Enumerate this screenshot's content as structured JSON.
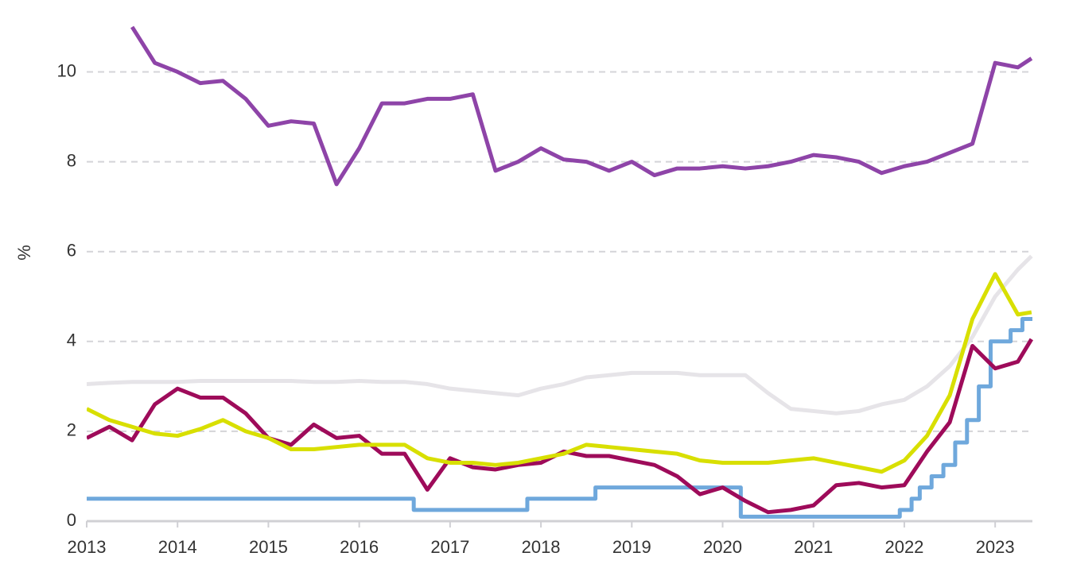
{
  "chart_data": {
    "type": "line",
    "y_label": "%",
    "xlim": [
      2013,
      2023.41
    ],
    "xticks": [
      2013,
      2014,
      2015,
      2016,
      2017,
      2018,
      2019,
      2020,
      2021,
      2022,
      2023
    ],
    "ylim": [
      0,
      11.6
    ],
    "yticks": [
      0,
      2,
      4,
      6,
      8,
      10
    ],
    "grid": true,
    "x": [
      2013,
      2013.25,
      2013.5,
      2013.75,
      2014,
      2014.25,
      2014.5,
      2014.75,
      2015,
      2015.25,
      2015.5,
      2015.75,
      2016,
      2016.25,
      2016.5,
      2016.75,
      2017,
      2017.25,
      2017.5,
      2017.75,
      2018,
      2018.25,
      2018.5,
      2018.75,
      2019,
      2019.25,
      2019.5,
      2019.75,
      2020,
      2020.25,
      2020.5,
      2020.75,
      2021,
      2021.25,
      2021.5,
      2021.75,
      2022,
      2022.25,
      2022.5,
      2022.75,
      2023,
      2023.25,
      2023.4
    ],
    "series": [
      {
        "color": "#e6e4e8",
        "values": [
          3.05,
          3.08,
          3.1,
          3.1,
          3.1,
          3.12,
          3.12,
          3.12,
          3.12,
          3.12,
          3.1,
          3.1,
          3.12,
          3.1,
          3.1,
          3.05,
          2.95,
          2.9,
          2.85,
          2.8,
          2.95,
          3.05,
          3.2,
          3.25,
          3.3,
          3.3,
          3.3,
          3.25,
          3.25,
          3.25,
          2.85,
          2.5,
          2.45,
          2.4,
          2.45,
          2.6,
          2.7,
          3.0,
          3.45,
          4.1,
          5.0,
          5.6,
          5.9
        ]
      },
      {
        "color": "#6fa8dc",
        "step": true,
        "x": [
          2013,
          2016.6,
          2017.85,
          2018.6,
          2020.2,
          2021.95,
          2022.08,
          2022.17,
          2022.3,
          2022.43,
          2022.56,
          2022.69,
          2022.82,
          2022.95,
          2023.17,
          2023.3,
          2023.41
        ],
        "values": [
          0.5,
          0.25,
          0.5,
          0.75,
          0.1,
          0.25,
          0.5,
          0.75,
          1.0,
          1.25,
          1.75,
          2.25,
          3.0,
          4.0,
          4.25,
          4.5,
          4.5
        ]
      },
      {
        "color": "#9e0b5a",
        "values": [
          1.85,
          2.1,
          1.8,
          2.6,
          2.95,
          2.75,
          2.75,
          2.4,
          1.85,
          1.7,
          2.15,
          1.85,
          1.9,
          1.5,
          1.5,
          0.7,
          1.4,
          1.2,
          1.15,
          1.25,
          1.3,
          1.55,
          1.45,
          1.45,
          1.35,
          1.25,
          1.0,
          0.6,
          0.75,
          0.45,
          0.2,
          0.25,
          0.35,
          0.8,
          0.85,
          0.75,
          0.8,
          1.55,
          2.2,
          3.9,
          3.4,
          3.55,
          4.05
        ]
      },
      {
        "color": "#d8df00",
        "values": [
          2.5,
          2.25,
          2.1,
          1.95,
          1.9,
          2.05,
          2.25,
          2.0,
          1.85,
          1.6,
          1.6,
          1.65,
          1.7,
          1.7,
          1.7,
          1.4,
          1.3,
          1.3,
          1.25,
          1.3,
          1.4,
          1.5,
          1.7,
          1.65,
          1.6,
          1.55,
          1.5,
          1.35,
          1.3,
          1.3,
          1.3,
          1.35,
          1.4,
          1.3,
          1.2,
          1.1,
          1.35,
          1.9,
          2.8,
          4.5,
          5.5,
          4.6,
          4.65
        ]
      },
      {
        "color": "#8e44a8",
        "values": [
          null,
          null,
          11.0,
          10.2,
          10.0,
          9.75,
          9.8,
          9.4,
          8.8,
          8.9,
          8.85,
          7.5,
          8.3,
          9.3,
          9.3,
          9.4,
          9.4,
          9.5,
          7.8,
          8.0,
          8.3,
          8.05,
          8.0,
          7.8,
          8.0,
          7.7,
          7.85,
          7.85,
          7.9,
          7.85,
          7.9,
          8.0,
          8.15,
          8.1,
          8.0,
          7.75,
          7.9,
          8.0,
          8.2,
          8.4,
          10.2,
          10.1,
          10.3
        ]
      }
    ]
  }
}
